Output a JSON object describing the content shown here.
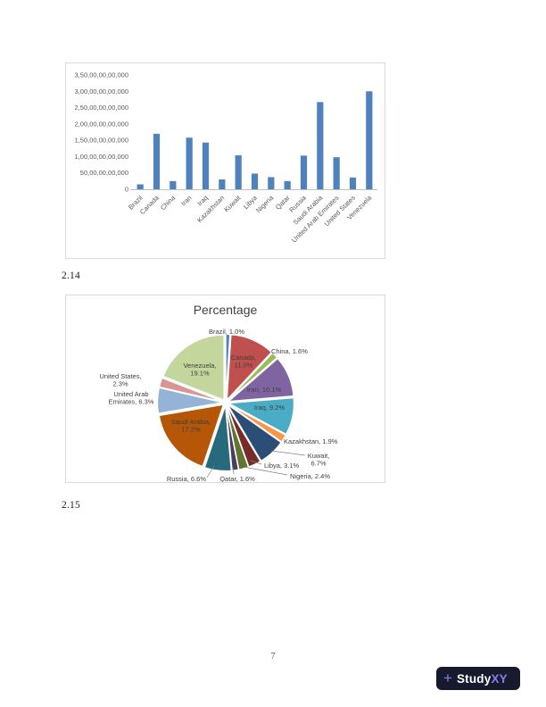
{
  "document": {
    "figure_labels": {
      "bar_section": "2.14",
      "pie_section": "2.15"
    },
    "page_number": "7"
  },
  "brand": {
    "plus_icon": "+",
    "name_primary": "Study",
    "name_accent": "XY",
    "bg_color": "#171A2D",
    "accent_color": "#8A7BEA",
    "text_color": "#FFFFFF"
  },
  "chart_data": [
    {
      "type": "bar",
      "title": "",
      "categories": [
        "Brazil",
        "Canada",
        "China",
        "Iran",
        "Iraq",
        "Kazakhstan",
        "Kuwait",
        "Libya",
        "Nigeria",
        "Qatar",
        "Russia",
        "Saudi Arabia",
        "United Arab Emirates",
        "United States",
        "Venezuela"
      ],
      "values": [
        15000000000,
        170000000000,
        25000000000,
        158000000000,
        143000000000,
        30000000000,
        104000000000,
        48000000000,
        37000000000,
        25000000000,
        103000000000,
        267000000000,
        98000000000,
        36000000000,
        300000000000
      ],
      "ylim": [
        0,
        350000000000
      ],
      "ytick_labels": [
        "0",
        "50,00,00,00,000",
        "1,00,00,00,00,000",
        "1,50,00,00,00,000",
        "2,00,00,00,00,000",
        "2,50,00,00,00,000",
        "3,00,00,00,00,000",
        "3,50,00,00,00,000"
      ],
      "bar_color": "#4F81BD",
      "axis_color": "#BFBFBF",
      "grid": false,
      "legend": "none"
    },
    {
      "type": "pie",
      "title": "Percentage",
      "labels": [
        "Brazil",
        "Canada",
        "China",
        "Iran",
        "Iraq",
        "Kazakhstan",
        "Kuwait",
        "Libya",
        "Nigeria",
        "Qatar",
        "Russia",
        "Saudi Arabia",
        "United Arab Emirates",
        "United States",
        "Venezuela"
      ],
      "values": [
        1.0,
        11.0,
        1.6,
        10.1,
        9.2,
        1.9,
        6.7,
        3.1,
        2.4,
        1.6,
        6.6,
        17.2,
        6.3,
        2.3,
        19.1
      ],
      "unit": "%",
      "colors": [
        "#4F81BD",
        "#C0504D",
        "#9BBB59",
        "#8064A2",
        "#4BACC6",
        "#F79646",
        "#2C4D75",
        "#772C2A",
        "#5F7530",
        "#4D3B62",
        "#276A7C",
        "#B65708",
        "#95B3D7",
        "#D99694",
        "#C3D69B"
      ],
      "inside_label_colors": {
        "Canada": "#7B2E2B",
        "Iran": "#443256",
        "Iraq": "#1F497D",
        "Saudi Arabia": "#843C12",
        "Venezuela": "#404040"
      },
      "start_angle": 0,
      "direction": "clockwise",
      "legend": "none"
    }
  ]
}
